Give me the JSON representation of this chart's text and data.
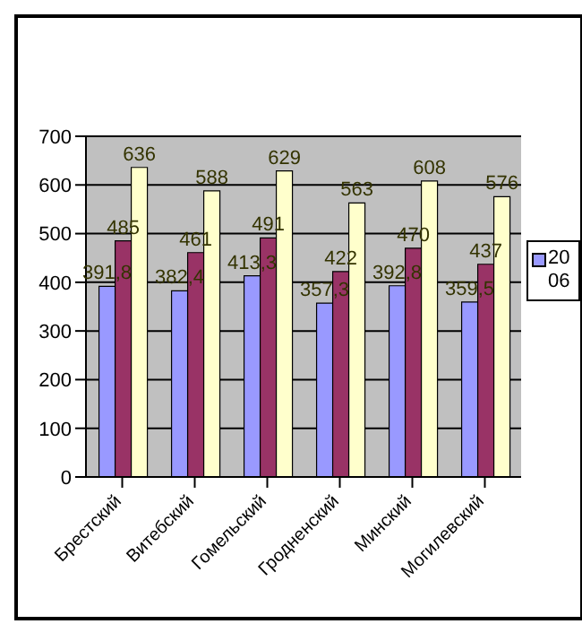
{
  "chart_data": {
    "type": "bar",
    "categories": [
      "Брестский",
      "Витебский",
      "Гомельский",
      "Гродненский",
      "Минский",
      "Могилевский"
    ],
    "series": [
      {
        "name": "2006",
        "color": "#9999ff",
        "values": [
          391.8,
          382.4,
          413.3,
          357.3,
          392.8,
          359.5
        ],
        "value_labels": [
          "391,8",
          "382,4",
          "413,3",
          "357,3",
          "392,8",
          "359,5"
        ]
      },
      {
        "color": "#993366",
        "values": [
          485,
          461,
          491,
          422,
          470,
          437
        ],
        "value_labels": [
          "485",
          "461",
          "491",
          "422",
          "470",
          "437"
        ]
      },
      {
        "color": "#ffffcc",
        "values": [
          636,
          588,
          629,
          563,
          608,
          576
        ],
        "value_labels": [
          "636",
          "588",
          "629",
          "563",
          "608",
          "576"
        ]
      }
    ],
    "ylim": [
      0,
      700
    ],
    "yticks": [
      0,
      100,
      200,
      300,
      400,
      500,
      600,
      700
    ],
    "grid": "y",
    "legend": "right"
  }
}
